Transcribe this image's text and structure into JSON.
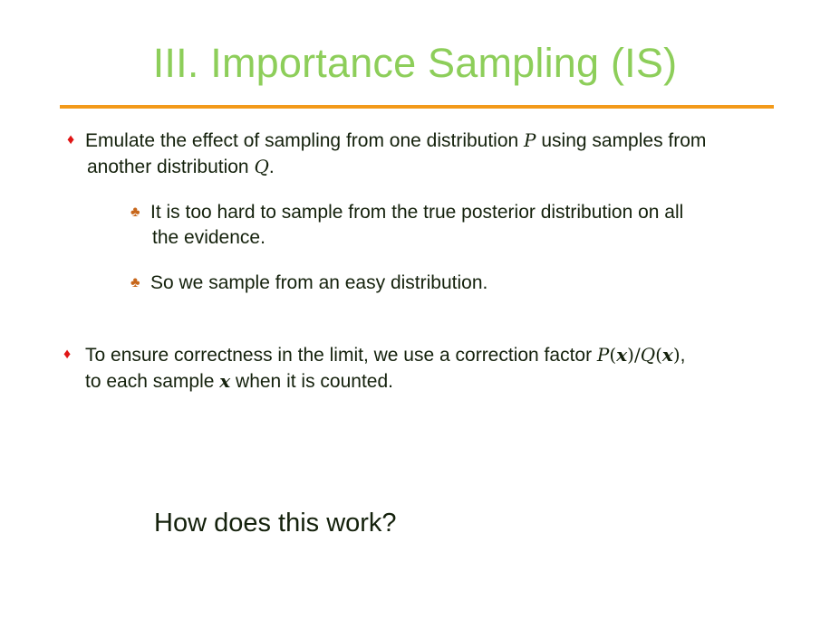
{
  "slide": {
    "title": "III. Importance Sampling (IS)",
    "colors": {
      "title": "#8dce5a",
      "rule": "#f39a1a",
      "diamond_bullet": "#e01515",
      "club_bullet": "#c7661a",
      "text": "#14210c"
    },
    "bullets": [
      {
        "marker": "diamond",
        "line1_a": "Emulate the effect of sampling from one distribution ",
        "line1_math": "P",
        "line1_b": " using samples from",
        "line2_a": "another distribution ",
        "line2_math": "Q",
        "line2_b": "."
      },
      {
        "marker": "club",
        "line1": "It is too hard to sample from the true posterior distribution on all",
        "line2": "the evidence."
      },
      {
        "marker": "club",
        "line1": "So we sample from an easy distribution."
      },
      {
        "marker": "diamond",
        "line1_a": "To ensure correctness in the limit, we use a correction factor ",
        "math_P": "P",
        "math_open": "(",
        "math_x": "x",
        "math_close_slash": ")/",
        "math_Q": "Q",
        "math_open2": "(",
        "math_x2": "x",
        "math_close2": ")",
        "line1_b": ",",
        "line2_a": "to each sample ",
        "line2_math": "x",
        "line2_b": " when it is counted."
      }
    ],
    "question": "How does this work?",
    "markers": {
      "diamond": "♦",
      "club": "♣"
    }
  }
}
